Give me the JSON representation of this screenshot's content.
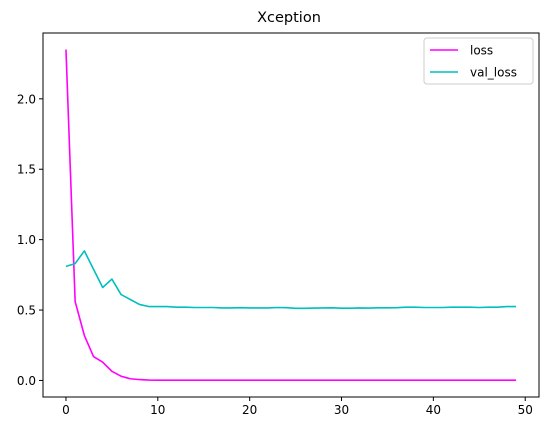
{
  "chart_data": {
    "type": "line",
    "title": "Xception",
    "xlabel": "",
    "ylabel": "",
    "xlim": [
      -2.5,
      51.5
    ],
    "ylim": [
      -0.1175,
      2.4675
    ],
    "xticks": [
      0,
      10,
      20,
      30,
      40,
      50
    ],
    "yticks": [
      0.0,
      0.5,
      1.0,
      1.5,
      2.0
    ],
    "xtick_labels": [
      "0",
      "10",
      "20",
      "30",
      "40",
      "50"
    ],
    "ytick_labels": [
      "0.0",
      "0.5",
      "1.0",
      "1.5",
      "2.0"
    ],
    "grid": false,
    "legend_position": "top-right",
    "x": [
      0,
      1,
      2,
      3,
      4,
      5,
      6,
      7,
      8,
      9,
      10,
      11,
      12,
      13,
      14,
      15,
      16,
      17,
      18,
      19,
      20,
      21,
      22,
      23,
      24,
      25,
      26,
      27,
      28,
      29,
      30,
      31,
      32,
      33,
      34,
      35,
      36,
      37,
      38,
      39,
      40,
      41,
      42,
      43,
      44,
      45,
      46,
      47,
      48,
      49
    ],
    "series": [
      {
        "name": "loss",
        "color": "#ff00ff",
        "values": [
          2.35,
          0.56,
          0.32,
          0.17,
          0.13,
          0.065,
          0.03,
          0.012,
          0.006,
          0.003,
          0.002,
          0.002,
          0.002,
          0.002,
          0.002,
          0.002,
          0.002,
          0.002,
          0.002,
          0.002,
          0.002,
          0.002,
          0.002,
          0.002,
          0.002,
          0.002,
          0.002,
          0.002,
          0.002,
          0.002,
          0.002,
          0.002,
          0.002,
          0.002,
          0.002,
          0.002,
          0.002,
          0.002,
          0.002,
          0.002,
          0.002,
          0.002,
          0.002,
          0.002,
          0.002,
          0.002,
          0.002,
          0.002,
          0.002,
          0.002
        ]
      },
      {
        "name": "val_loss",
        "color": "#00bfbf",
        "values": [
          0.81,
          0.83,
          0.92,
          0.79,
          0.66,
          0.72,
          0.61,
          0.575,
          0.54,
          0.525,
          0.525,
          0.525,
          0.52,
          0.52,
          0.518,
          0.518,
          0.518,
          0.515,
          0.515,
          0.517,
          0.515,
          0.515,
          0.515,
          0.518,
          0.517,
          0.512,
          0.512,
          0.514,
          0.515,
          0.516,
          0.513,
          0.513,
          0.515,
          0.514,
          0.516,
          0.516,
          0.517,
          0.52,
          0.52,
          0.518,
          0.518,
          0.518,
          0.52,
          0.52,
          0.52,
          0.518,
          0.52,
          0.52,
          0.525,
          0.525
        ]
      }
    ]
  }
}
